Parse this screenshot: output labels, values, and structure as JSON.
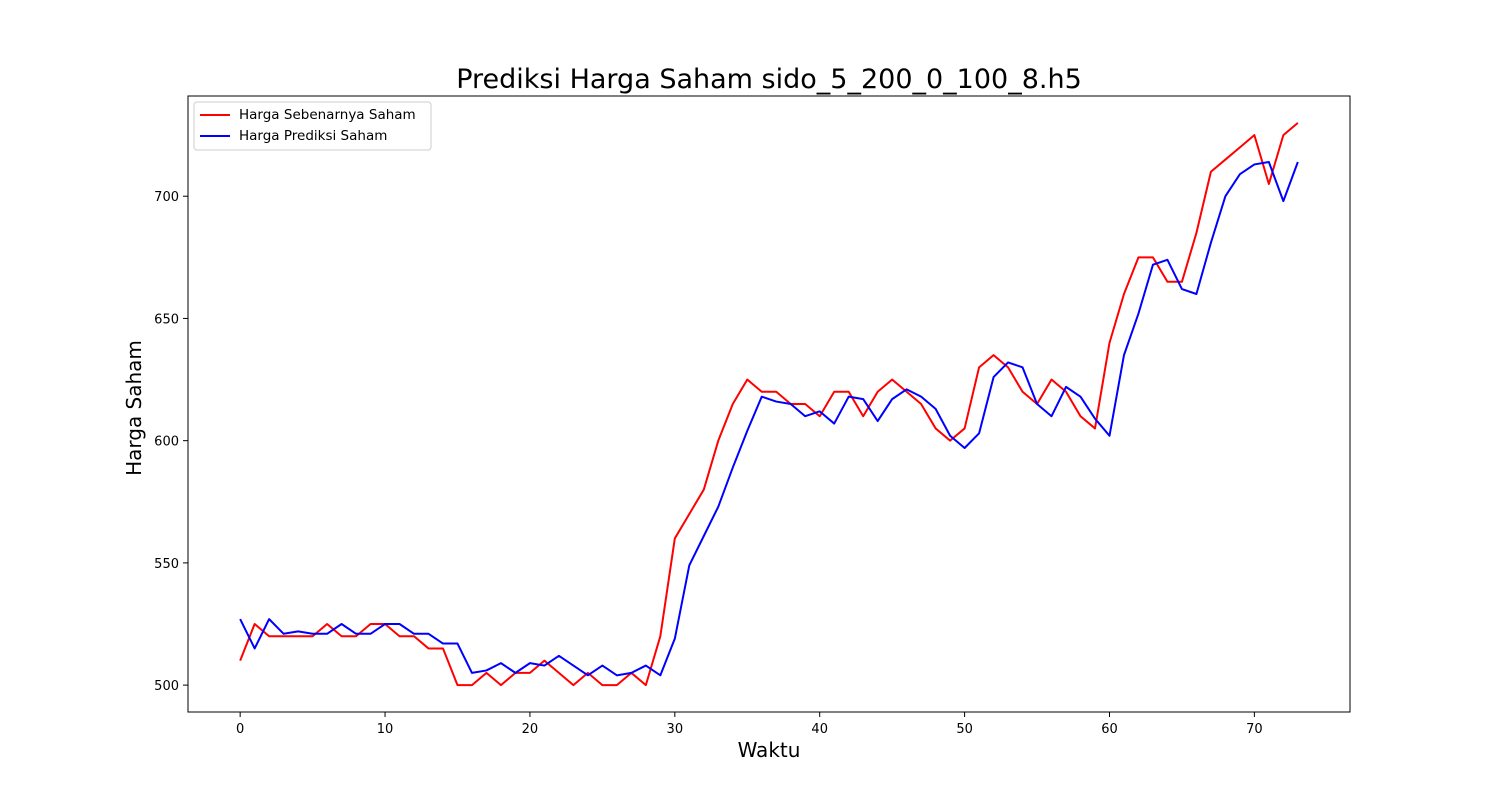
{
  "chart_data": {
    "type": "line",
    "title": "Prediksi Harga Saham sido_5_200_0_100_8.h5",
    "xlabel": "Waktu",
    "ylabel": "Harga Saham",
    "xlim": [
      -3.6,
      76.6
    ],
    "ylim": [
      489,
      741
    ],
    "xticks": [
      0,
      10,
      20,
      30,
      40,
      50,
      60,
      70
    ],
    "yticks": [
      500,
      550,
      600,
      650,
      700
    ],
    "grid": false,
    "legend_position": "top-left",
    "series": [
      {
        "name": "Harga Sebenarnya Saham",
        "color": "#ff0000",
        "x": [
          0,
          1,
          2,
          3,
          4,
          5,
          6,
          7,
          8,
          9,
          10,
          11,
          12,
          13,
          14,
          15,
          16,
          17,
          18,
          19,
          20,
          21,
          22,
          23,
          24,
          25,
          26,
          27,
          28,
          29,
          30,
          31,
          32,
          33,
          34,
          35,
          36,
          37,
          38,
          39,
          40,
          41,
          42,
          43,
          44,
          45,
          46,
          47,
          48,
          49,
          50,
          51,
          52,
          53,
          54,
          55,
          56,
          57,
          58,
          59,
          60,
          61,
          62,
          63,
          64,
          65,
          66,
          67,
          68,
          69,
          70,
          71,
          72,
          73
        ],
        "values": [
          510,
          525,
          520,
          520,
          520,
          520,
          525,
          520,
          520,
          525,
          525,
          520,
          520,
          515,
          515,
          500,
          500,
          505,
          500,
          505,
          505,
          510,
          505,
          500,
          505,
          500,
          500,
          505,
          500,
          520,
          560,
          570,
          580,
          600,
          615,
          625,
          620,
          620,
          615,
          615,
          610,
          620,
          620,
          610,
          620,
          625,
          620,
          615,
          605,
          600,
          605,
          630,
          635,
          630,
          620,
          615,
          625,
          620,
          610,
          605,
          640,
          660,
          675,
          675,
          665,
          665,
          685,
          710,
          715,
          720,
          725,
          705,
          725,
          730
        ]
      },
      {
        "name": "Harga Prediksi Saham",
        "color": "#0000ff",
        "x": [
          0,
          1,
          2,
          3,
          4,
          5,
          6,
          7,
          8,
          9,
          10,
          11,
          12,
          13,
          14,
          15,
          16,
          17,
          18,
          19,
          20,
          21,
          22,
          23,
          24,
          25,
          26,
          27,
          28,
          29,
          30,
          31,
          32,
          33,
          34,
          35,
          36,
          37,
          38,
          39,
          40,
          41,
          42,
          43,
          44,
          45,
          46,
          47,
          48,
          49,
          50,
          51,
          52,
          53,
          54,
          55,
          56,
          57,
          58,
          59,
          60,
          61,
          62,
          63,
          64,
          65,
          66,
          67,
          68,
          69,
          70,
          71,
          72,
          73
        ],
        "values": [
          527,
          515,
          527,
          521,
          522,
          521,
          521,
          525,
          521,
          521,
          525,
          525,
          521,
          521,
          517,
          517,
          505,
          506,
          509,
          505,
          509,
          508,
          512,
          508,
          504,
          508,
          504,
          505,
          508,
          504,
          519,
          549,
          561,
          573,
          589,
          604,
          618,
          616,
          615,
          610,
          612,
          607,
          618,
          617,
          608,
          617,
          621,
          618,
          613,
          602,
          597,
          603,
          626,
          632,
          630,
          615,
          610,
          622,
          618,
          609,
          602,
          635,
          652,
          672,
          674,
          662,
          660,
          681,
          700,
          709,
          713,
          714,
          698,
          714
        ]
      }
    ]
  }
}
